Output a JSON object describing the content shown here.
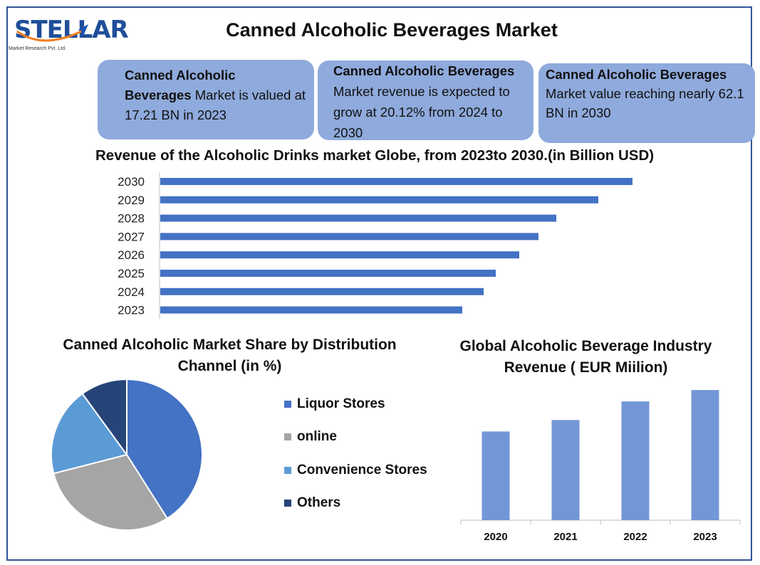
{
  "logo": {
    "text": "STELLAR",
    "subtitle": "Market Research Pvt. Ltd."
  },
  "title": "Canned Alcoholic Beverages Market",
  "cards": [
    {
      "bold": "Canned Alcoholic Beverages",
      "rest": " Market is valued at 17.21 BN in 2023"
    },
    {
      "bold": "Canned Alcoholic Beverages",
      "rest": "Market revenue is expected to grow at 20.12% from 2024 to 2030"
    },
    {
      "bold": "Canned Alcoholic Beverages",
      "rest": "Market value reaching nearly 62.1 BN in 2030"
    }
  ],
  "colors": {
    "bar": "#4472c4",
    "column": "#7397d6",
    "card": "#8faadc",
    "frame": "#2f5496"
  },
  "chart_data": [
    {
      "type": "bar",
      "orientation": "horizontal",
      "title": "Revenue of the Alcoholic Drinks market Globe, from 2023to 2030.(in Billion USD)",
      "categories": [
        "2030",
        "2029",
        "2028",
        "2027",
        "2026",
        "2025",
        "2024",
        "2023"
      ],
      "values": [
        663,
        615,
        556,
        531,
        504,
        471,
        454,
        424
      ],
      "xlim": [
        0,
        700
      ],
      "grid": false
    },
    {
      "type": "pie",
      "title": "Canned Alcoholic Market Share by Distribution Channel (in %)",
      "categories": [
        "Liquor Stores",
        "online",
        "Convenience Stores",
        "Others"
      ],
      "values": [
        41,
        30,
        19,
        10
      ],
      "colors": [
        "#4472c4",
        "#a5a5a5",
        "#5b9bd5",
        "#264478"
      ],
      "legend": "right"
    },
    {
      "type": "bar",
      "orientation": "vertical",
      "title": "Global Alcoholic Beverage Industry Revenue  ( EUR Miilion)",
      "categories": [
        "2020",
        "2021",
        "2022",
        "2023"
      ],
      "values": [
        62,
        70,
        83,
        91
      ],
      "ylim": [
        0,
        100
      ],
      "grid": false
    }
  ]
}
